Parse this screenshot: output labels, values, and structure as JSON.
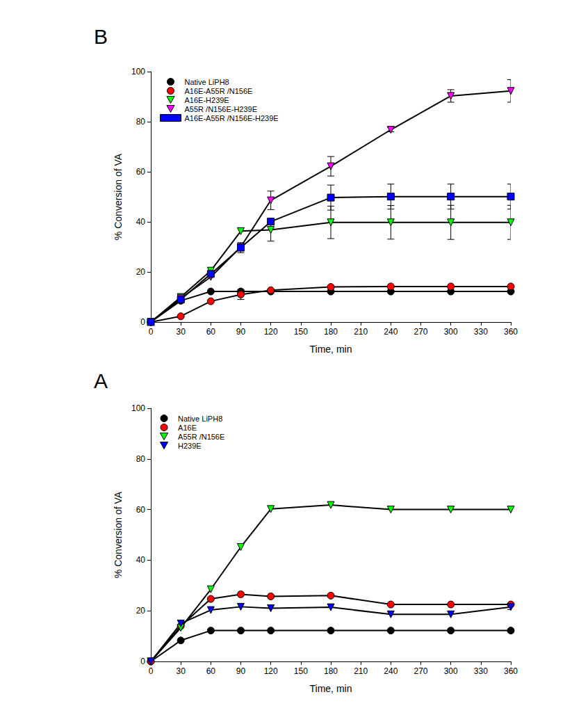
{
  "chart_data": [
    {
      "type": "line",
      "title": "B",
      "x": [
        0,
        30,
        60,
        90,
        120,
        180,
        240,
        300,
        360
      ],
      "xlim": [
        0,
        360
      ],
      "xticks": [
        0,
        30,
        60,
        90,
        120,
        150,
        180,
        210,
        240,
        270,
        300,
        330,
        360
      ],
      "ylim": [
        0,
        100
      ],
      "yticks": [
        0,
        20,
        40,
        60,
        80,
        100
      ],
      "x_label": "Time, min",
      "y_label": "% Conversion of VA",
      "grid": false,
      "legend": "upper left",
      "series": [
        {
          "name": "Native LiPH8",
          "color": "#000000",
          "marker": "circle",
          "values": [
            0,
            8.5,
            12.2,
            12.2,
            12.2,
            12.2,
            12.2,
            12.2,
            12.2
          ],
          "errors": [
            null,
            null,
            null,
            null,
            null,
            null,
            null,
            null,
            null
          ]
        },
        {
          "name": "A16E-A55R /N156E",
          "color": "#ff0000",
          "marker": "circle",
          "values": [
            0,
            2.3,
            8.3,
            11.0,
            12.7,
            14.0,
            14.2,
            14.2,
            14.2
          ],
          "errors": [
            null,
            null,
            null,
            2.0,
            null,
            null,
            null,
            null,
            null
          ]
        },
        {
          "name": "A16E-H239E",
          "color": "#00ff00",
          "marker": "triangle_down",
          "values": [
            0,
            10.0,
            20.5,
            36.3,
            36.8,
            39.8,
            39.8,
            39.8,
            39.8
          ],
          "errors": [
            null,
            null,
            null,
            null,
            4.5,
            6.5,
            6.7,
            6.8,
            6.8
          ]
        },
        {
          "name": "A55R /N156E-H239E",
          "color": "#ff00ff",
          "marker": "triangle_down",
          "values": [
            0,
            9.5,
            18.0,
            30.0,
            48.6,
            62.2,
            76.8,
            90.3,
            92.3
          ],
          "errors": [
            null,
            null,
            null,
            null,
            3.7,
            3.9,
            0.8,
            2.5,
            4.5
          ]
        },
        {
          "name": "A16E-A55R /N156E-H239E",
          "color": "#0000ff",
          "marker": "square",
          "values": [
            0,
            9.0,
            19.2,
            29.7,
            40.1,
            49.7,
            50.1,
            50.1,
            50.1
          ],
          "errors": [
            null,
            null,
            null,
            2.0,
            null,
            5.0,
            5.0,
            5.0,
            5.0
          ]
        }
      ]
    },
    {
      "type": "line",
      "title": "A",
      "x": [
        0,
        30,
        60,
        90,
        120,
        180,
        240,
        300,
        360
      ],
      "xlim": [
        0,
        360
      ],
      "xticks": [
        0,
        30,
        60,
        90,
        120,
        150,
        180,
        210,
        240,
        270,
        300,
        330,
        360
      ],
      "ylim": [
        0,
        100
      ],
      "yticks": [
        0,
        20,
        40,
        60,
        80,
        100
      ],
      "x_label": "Time, min",
      "y_label": "% Conversion of VA",
      "grid": false,
      "legend": "upper left",
      "series": [
        {
          "name": "Native LiPH8",
          "color": "#000000",
          "marker": "circle",
          "values": [
            0,
            8.3,
            12.2,
            12.2,
            12.2,
            12.2,
            12.2,
            12.2,
            12.2
          ],
          "errors": [
            null,
            null,
            null,
            null,
            null,
            null,
            null,
            null,
            null
          ]
        },
        {
          "name": "A16E",
          "color": "#ff0000",
          "marker": "circle",
          "values": [
            0,
            14.0,
            24.7,
            26.5,
            25.7,
            26.0,
            22.5,
            22.5,
            22.5
          ],
          "errors": [
            null,
            null,
            null,
            null,
            null,
            null,
            null,
            null,
            null
          ]
        },
        {
          "name": "A55R /N156E",
          "color": "#00ff00",
          "marker": "triangle_down",
          "values": [
            0,
            13.3,
            28.5,
            45.2,
            60.2,
            61.8,
            60.0,
            60.0,
            60.0
          ],
          "errors": [
            null,
            null,
            null,
            null,
            null,
            null,
            null,
            null,
            null
          ]
        },
        {
          "name": "H239E",
          "color": "#0000ff",
          "marker": "triangle_down",
          "values": [
            0,
            15.0,
            20.3,
            21.6,
            21.0,
            21.4,
            18.6,
            18.6,
            21.5
          ],
          "errors": [
            null,
            null,
            null,
            null,
            null,
            null,
            null,
            null,
            1.0
          ]
        }
      ]
    }
  ]
}
